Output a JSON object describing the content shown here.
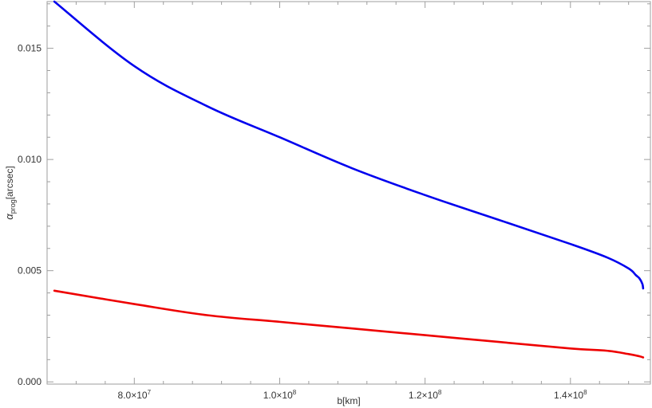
{
  "chart_data": {
    "type": "line",
    "xlabel": "b[km]",
    "ylabel": {
      "symbol": "α",
      "subscript": "prog",
      "unit": "[arcsec]"
    },
    "xlim": [
      68000000,
      151000000
    ],
    "ylim": [
      -0.0001,
      0.0171
    ],
    "x_ticks": [
      {
        "value": 80000000,
        "mantissa": "8.0",
        "exponent": "7"
      },
      {
        "value": 100000000,
        "mantissa": "1.0",
        "exponent": "8"
      },
      {
        "value": 120000000,
        "mantissa": "1.2",
        "exponent": "8"
      },
      {
        "value": 140000000,
        "mantissa": "1.4",
        "exponent": "8"
      }
    ],
    "y_ticks": [
      {
        "value": 0.0,
        "label": "0.000"
      },
      {
        "value": 0.005,
        "label": "0.005"
      },
      {
        "value": 0.01,
        "label": "0.010"
      },
      {
        "value": 0.015,
        "label": "0.015"
      }
    ],
    "grid": false,
    "frame": true,
    "series": [
      {
        "color": "#0000ee",
        "x": [
          69000000,
          80000000,
          90000000,
          100000000,
          110000000,
          120000000,
          130000000,
          140000000,
          145000000,
          148000000,
          149000000,
          149500000,
          149900000,
          150000000
        ],
        "y": [
          0.0171,
          0.0142,
          0.0124,
          0.011,
          0.0096,
          0.0084,
          0.0073,
          0.0062,
          0.0056,
          0.0051,
          0.0048,
          0.00465,
          0.0044,
          0.0042
        ]
      },
      {
        "color": "#ee0000",
        "x": [
          69000000,
          80000000,
          90000000,
          100000000,
          110000000,
          120000000,
          130000000,
          140000000,
          145000000,
          148000000,
          149500000,
          150000000
        ],
        "y": [
          0.0041,
          0.0035,
          0.003,
          0.0027,
          0.0024,
          0.0021,
          0.0018,
          0.0015,
          0.0014,
          0.00125,
          0.00115,
          0.0011
        ]
      }
    ]
  }
}
